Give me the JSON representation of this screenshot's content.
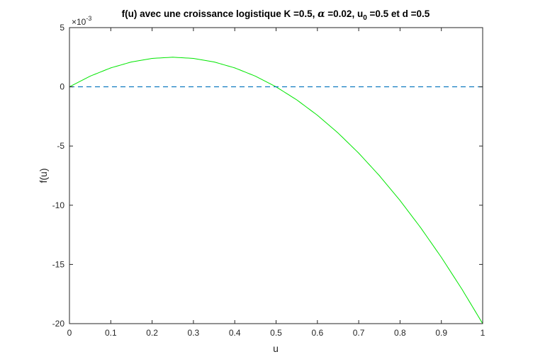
{
  "chart_data": {
    "type": "line",
    "title": {
      "prefix": "f(u) avec une croissance logistique K =0.5, ",
      "alpha_symbol": "α",
      "alpha_text": " =0.02, u",
      "sub0": "0",
      "suffix": " =0.5 et d =0.5"
    },
    "xlabel": "u",
    "ylabel": "f(u)",
    "y_exponent": {
      "base": "×10",
      "power": "-3"
    },
    "xlim": [
      0,
      1
    ],
    "ylim": [
      -20,
      5
    ],
    "xticks": [
      0,
      0.1,
      0.2,
      0.3,
      0.4,
      0.5,
      0.6,
      0.7,
      0.8,
      0.9,
      1
    ],
    "xtick_labels": [
      "0",
      "0.1",
      "0.2",
      "0.3",
      "0.4",
      "0.5",
      "0.6",
      "0.7",
      "0.8",
      "0.9",
      "1"
    ],
    "yticks": [
      5,
      0,
      -5,
      -10,
      -15,
      -20
    ],
    "ytick_labels": [
      "5",
      "0",
      "-5",
      "-10",
      "-15",
      "-20"
    ],
    "grid": false,
    "series": [
      {
        "style": "solid",
        "color": "#00e600",
        "x": [
          0,
          0.05,
          0.1,
          0.15,
          0.2,
          0.25,
          0.3,
          0.35,
          0.4,
          0.45,
          0.5,
          0.55,
          0.6,
          0.65,
          0.7,
          0.75,
          0.8,
          0.85,
          0.9,
          0.95,
          1
        ],
        "y": [
          0,
          0.9,
          1.6,
          2.1,
          2.4,
          2.5,
          2.4,
          2.1,
          1.6,
          0.9,
          0,
          -1.1,
          -2.4,
          -3.9,
          -5.6,
          -7.5,
          -9.6,
          -11.9,
          -14.4,
          -17.1,
          -20
        ]
      },
      {
        "style": "dashed",
        "color": "#0072bd",
        "x": [
          0,
          1
        ],
        "y": [
          0,
          0
        ]
      }
    ]
  }
}
